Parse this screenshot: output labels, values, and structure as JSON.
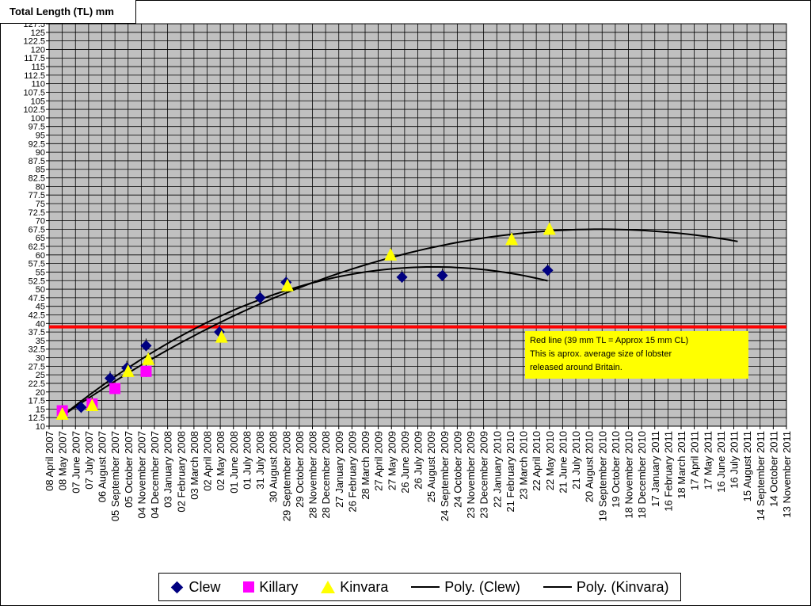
{
  "y_axis_title": "Total Length (TL) mm",
  "note": {
    "line1": "Red line (39 mm TL = Approx 15 mm CL)",
    "line2": "This is aprox. average size of lobster",
    "line3": "released around Britain."
  },
  "legend": {
    "clew": "Clew",
    "killary": "Killary",
    "kinvara": "Kinvara",
    "poly_clew": "Poly. (Clew)",
    "poly_kinvara": "Poly. (Kinvara)"
  },
  "colors": {
    "plot_bg": "#c0c0c0",
    "grid": "#000000",
    "clew": "#000080",
    "killary": "#ff00ff",
    "kinvara": "#ffff00",
    "reference_line": "#ff0000",
    "trend": "#000000"
  },
  "chart_data": {
    "type": "scatter",
    "title": "",
    "ylabel": "Total Length (TL) mm",
    "xlabel": "",
    "ylim": [
      10,
      127.5
    ],
    "y_ticks": [
      "10",
      "12.5",
      "15",
      "17.5",
      "20",
      "22.5",
      "25",
      "27.5",
      "30",
      "32.5",
      "35",
      "37.5",
      "40",
      "42.5",
      "45",
      "47.5",
      "50",
      "52.5",
      "55",
      "57.5",
      "60",
      "62.5",
      "65",
      "67.5",
      "70",
      "72.5",
      "75",
      "77.5",
      "80",
      "82.5",
      "85",
      "87.5",
      "90",
      "92.5",
      "95",
      "97.5",
      "100",
      "102.5",
      "105",
      "107.5",
      "110",
      "112.5",
      "115",
      "117.5",
      "120",
      "122.5",
      "125",
      "127.5"
    ],
    "x_ticks": [
      "08 April 2007",
      "08 May 2007",
      "07 June 2007",
      "07 July 2007",
      "06 August 2007",
      "05 September 2007",
      "05 October 2007",
      "04 November 2007",
      "04 December 2007",
      "03 January 2008",
      "02 February 2008",
      "03 March 2008",
      "02 April 2008",
      "02 May 2008",
      "01 June 2008",
      "01 July 2008",
      "31 July 2008",
      "30 August 2008",
      "29 September 2008",
      "29 October 2008",
      "28 November 2008",
      "28 December 2008",
      "27 January 2009",
      "26 February 2009",
      "28 March 2009",
      "27 April 2009",
      "27 May 2009",
      "26 June 2009",
      "26 July 2009",
      "25 August 2009",
      "24 September 2009",
      "24 October 2009",
      "23 November 2009",
      "23 December 2009",
      "22 January 2010",
      "21 February 2010",
      "23 March 2010",
      "22 April 2010",
      "22 May 2010",
      "21 June 2010",
      "21 July 2010",
      "20 August 2010",
      "19 September 2010",
      "19 October 2010",
      "18 November 2010",
      "18 December 2010",
      "17 January 2011",
      "16 February 2011",
      "18 March 2011",
      "17 April 2011",
      "17 May 2011",
      "16 June 2011",
      "16 July 2011",
      "15 August 2011",
      "14 September 2011",
      "14 October 2011",
      "13 November 2011"
    ],
    "reference_line_y": 39,
    "series": [
      {
        "name": "Clew",
        "marker": "diamond",
        "x": [
          "2007-05-08",
          "2007-06-20",
          "2007-08-25",
          "2007-10-02",
          "2007-11-15",
          "2008-04-30",
          "2008-08-01",
          "2008-09-29",
          "2009-06-20",
          "2009-09-20",
          "2010-05-18"
        ],
        "y": [
          14,
          15.5,
          24,
          27,
          33.5,
          37.5,
          47.5,
          52,
          53.5,
          54,
          55.5
        ]
      },
      {
        "name": "Killary",
        "marker": "square",
        "x": [
          "2007-05-08",
          "2007-07-15",
          "2007-09-05",
          "2007-11-15"
        ],
        "y": [
          14.5,
          16.5,
          21,
          26
        ]
      },
      {
        "name": "Kinvara",
        "marker": "triangle",
        "x": [
          "2007-05-08",
          "2007-07-15",
          "2007-10-05",
          "2007-11-20",
          "2008-05-05",
          "2008-10-02",
          "2009-05-25",
          "2010-02-25",
          "2010-05-22"
        ],
        "y": [
          13.5,
          16,
          26,
          29.5,
          36,
          51,
          60,
          64.5,
          67.5
        ]
      }
    ],
    "trendlines": [
      {
        "name": "Poly. (Clew)",
        "x_range": [
          "2007-05-08",
          "2010-05-18"
        ],
        "degree": 2,
        "ymin_at_start": 13,
        "peak": 56.5,
        "peak_at": "2009-09-01",
        "y_at_end": 54
      },
      {
        "name": "Poly. (Kinvara)",
        "x_range": [
          "2007-05-08",
          "2011-07-25"
        ],
        "degree": 2,
        "ymin_at_start": 13,
        "peak": 67.5,
        "peak_at": "2010-09-15",
        "y_at_end": 63
      }
    ],
    "grid": true,
    "legend_position": "bottom"
  }
}
